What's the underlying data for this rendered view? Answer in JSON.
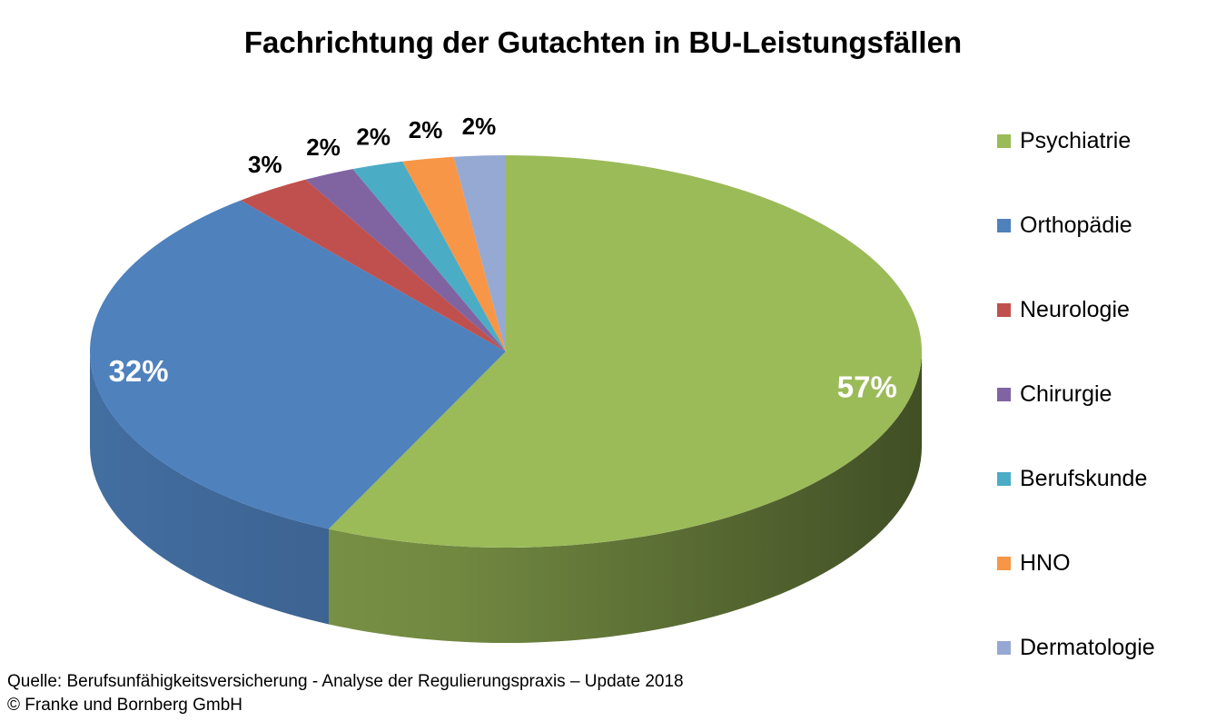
{
  "chart_data": {
    "type": "pie",
    "title": "Fachrichtung der Gutachten in BU-Leistungsfällen",
    "categories": [
      "Psychiatrie",
      "Orthopädie",
      "Neurologie",
      "Chirurgie",
      "Berufskunde",
      "HNO",
      "Dermatologie"
    ],
    "values": [
      57,
      32,
      3,
      2,
      2,
      2,
      2
    ],
    "data_labels": [
      "57%",
      "32%",
      "3%",
      "2%",
      "2%",
      "2%",
      "2%"
    ],
    "colors": [
      "#9BBB59",
      "#4F81BD",
      "#C0504D",
      "#8064A2",
      "#4BACC6",
      "#F79646",
      "#95A9D3"
    ],
    "legend_position": "right",
    "style": "3d-pie"
  },
  "source": {
    "line1": "Quelle: Berufsunfähigkeitsversicherung - Analyse der Regulierungspraxis – Update 2018",
    "line2": "© Franke und Bornberg GmbH"
  }
}
